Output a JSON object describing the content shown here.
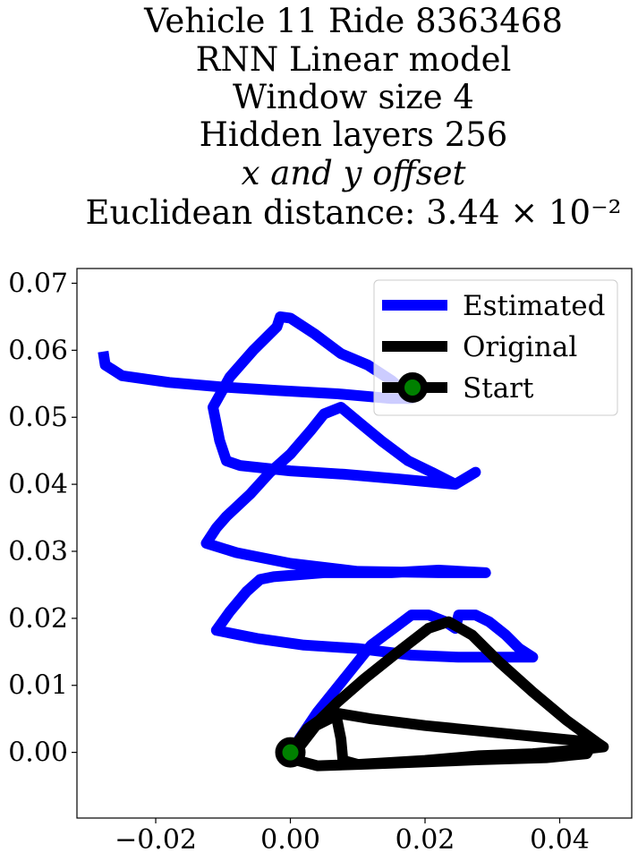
{
  "chart_data": {
    "type": "line",
    "title_lines": [
      "Vehicle 11 Ride 8363468",
      "RNN Linear model",
      "Window size 4",
      "Hidden layers 256",
      "x and y offset",
      "Euclidean distance: 3.44 × 10⁻²"
    ],
    "xlabel": "",
    "ylabel": "",
    "xlim": [
      -0.0317,
      0.0507
    ],
    "ylim": [
      -0.0098,
      0.0722
    ],
    "x_ticks": [
      -0.02,
      0.0,
      0.02,
      0.04
    ],
    "x_tick_labels": [
      "−0.02",
      "0.00",
      "0.02",
      "0.04"
    ],
    "y_ticks": [
      0.0,
      0.01,
      0.02,
      0.03,
      0.04,
      0.05,
      0.06,
      0.07
    ],
    "y_tick_labels": [
      "0.00",
      "0.01",
      "0.02",
      "0.03",
      "0.04",
      "0.05",
      "0.06",
      "0.07"
    ],
    "grid": false,
    "legend_position": "top-right",
    "series": [
      {
        "name": "Estimated",
        "color": "#0000ff",
        "points": [
          [
            0.0,
            0.0
          ],
          [
            0.004,
            0.006
          ],
          [
            0.008,
            0.011
          ],
          [
            0.012,
            0.016
          ],
          [
            0.016,
            0.019
          ],
          [
            0.018,
            0.0205
          ],
          [
            0.0205,
            0.0205
          ],
          [
            0.023,
            0.0195
          ],
          [
            0.0245,
            0.0185
          ],
          [
            0.025,
            0.0205
          ],
          [
            0.0275,
            0.0205
          ],
          [
            0.0295,
            0.0195
          ],
          [
            0.032,
            0.0175
          ],
          [
            0.034,
            0.0155
          ],
          [
            0.036,
            0.0142
          ],
          [
            0.025,
            0.0142
          ],
          [
            0.018,
            0.0145
          ],
          [
            0.01,
            0.0155
          ],
          [
            0.002,
            0.016
          ],
          [
            -0.005,
            0.017
          ],
          [
            -0.011,
            0.0182
          ],
          [
            -0.009,
            0.021
          ],
          [
            -0.0065,
            0.024
          ],
          [
            -0.0045,
            0.0258
          ],
          [
            -0.0025,
            0.0262
          ],
          [
            0.005,
            0.0268
          ],
          [
            0.015,
            0.0268
          ],
          [
            0.022,
            0.0272
          ],
          [
            0.029,
            0.0268
          ],
          [
            0.022,
            0.0268
          ],
          [
            0.01,
            0.027
          ],
          [
            0.0,
            0.0282
          ],
          [
            -0.008,
            0.0298
          ],
          [
            -0.0125,
            0.0312
          ],
          [
            -0.011,
            0.0335
          ],
          [
            -0.0095,
            0.0352
          ],
          [
            -0.006,
            0.0385
          ],
          [
            -0.003,
            0.0418
          ],
          [
            0.0,
            0.0445
          ],
          [
            0.003,
            0.048
          ],
          [
            0.005,
            0.0505
          ],
          [
            0.0075,
            0.0515
          ],
          [
            0.0105,
            0.049
          ],
          [
            0.0135,
            0.0465
          ],
          [
            0.0175,
            0.0435
          ],
          [
            0.021,
            0.0418
          ],
          [
            0.0245,
            0.04
          ],
          [
            0.0275,
            0.0418
          ],
          [
            0.0245,
            0.04
          ],
          [
            0.016,
            0.0408
          ],
          [
            0.008,
            0.0415
          ],
          [
            0.0,
            0.042
          ],
          [
            -0.0075,
            0.0428
          ],
          [
            -0.0095,
            0.0435
          ],
          [
            -0.0105,
            0.0465
          ],
          [
            -0.0115,
            0.0515
          ],
          [
            -0.009,
            0.056
          ],
          [
            -0.0055,
            0.06
          ],
          [
            -0.002,
            0.0635
          ],
          [
            -0.0015,
            0.065
          ],
          [
            0.0,
            0.0648
          ],
          [
            0.0035,
            0.0625
          ],
          [
            0.0075,
            0.0595
          ],
          [
            0.0115,
            0.0578
          ],
          [
            0.015,
            0.0555
          ],
          [
            0.018,
            0.0528
          ],
          [
            0.015,
            0.0528
          ],
          [
            0.007,
            0.0535
          ],
          [
            -0.002,
            0.054
          ],
          [
            -0.01,
            0.0545
          ],
          [
            -0.018,
            0.0552
          ],
          [
            -0.025,
            0.0562
          ],
          [
            -0.0275,
            0.0578
          ],
          [
            -0.0278,
            0.0598
          ]
        ]
      },
      {
        "name": "Original",
        "color": "#000000",
        "points": [
          [
            0.0,
            0.0
          ],
          [
            0.003,
            0.0035
          ],
          [
            0.007,
            0.0075
          ],
          [
            0.011,
            0.011
          ],
          [
            0.016,
            0.015
          ],
          [
            0.0205,
            0.0185
          ],
          [
            0.0235,
            0.0195
          ],
          [
            0.027,
            0.0175
          ],
          [
            0.031,
            0.0135
          ],
          [
            0.036,
            0.009
          ],
          [
            0.041,
            0.0048
          ],
          [
            0.0455,
            0.0015
          ],
          [
            0.0465,
            0.0008
          ],
          [
            0.043,
            0.0004
          ],
          [
            0.036,
            -0.0002
          ],
          [
            0.028,
            -0.0005
          ],
          [
            0.02,
            -0.0012
          ],
          [
            0.01,
            -0.0018
          ],
          [
            0.004,
            -0.002
          ],
          [
            0.001,
            -0.0012
          ],
          [
            0.0,
            0.0
          ],
          [
            0.0025,
            0.0035
          ],
          [
            0.006,
            0.006
          ],
          [
            0.012,
            0.005
          ],
          [
            0.02,
            0.004
          ],
          [
            0.03,
            0.003
          ],
          [
            0.04,
            0.002
          ],
          [
            0.045,
            0.0015
          ],
          [
            0.044,
            -0.0002
          ],
          [
            0.038,
            -0.0008
          ],
          [
            0.028,
            -0.0011
          ],
          [
            0.018,
            -0.0015
          ],
          [
            0.01,
            -0.0018
          ],
          [
            0.0078,
            -0.0012
          ],
          [
            0.0075,
            0.002
          ],
          [
            0.0068,
            0.0055
          ],
          [
            0.0038,
            0.004
          ],
          [
            0.0015,
            0.001
          ],
          [
            0.0,
            0.0
          ]
        ]
      }
    ],
    "start": {
      "name": "Start",
      "x": 0.0,
      "y": 0.0,
      "marker_color": "#008000",
      "edge_color": "#000000"
    }
  }
}
